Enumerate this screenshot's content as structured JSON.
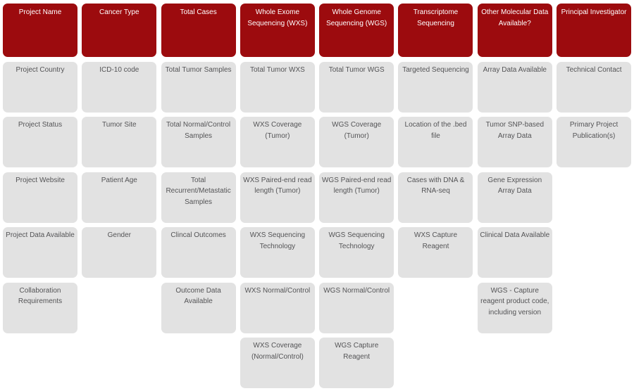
{
  "colors": {
    "header_bg": "#9C0B0E",
    "header_text": "#FFFFFF",
    "cell_bg": "#E2E2E2",
    "cell_text": "#545456",
    "page_bg": "#FFFFFF"
  },
  "columns": [
    {
      "header": "Project Name",
      "cells": [
        "Project Country",
        "Project Status",
        "Project Website",
        "Project Data Available",
        "Collaboration\nRequirements"
      ]
    },
    {
      "header": "Cancer Type",
      "cells": [
        "ICD-10 code",
        "Tumor Site",
        "Patient Age",
        "Gender"
      ]
    },
    {
      "header": "Total Cases",
      "cells": [
        "Total Tumor Samples",
        "Total Normal/Control\nSamples",
        "Total\nRecurrent/Metastatic\nSamples",
        "Clincal Outcomes",
        "Outcome Data\nAvailable"
      ]
    },
    {
      "header": "Whole Exome\nSequencing (WXS)",
      "cells": [
        "Total Tumor WXS",
        "WXS Coverage\n(Tumor)",
        "WXS Paired-end read\nlength (Tumor)",
        "WXS Sequencing\nTechnology",
        "WXS Normal/Control",
        "WXS Coverage\n(Normal/Control)"
      ]
    },
    {
      "header": "Whole Genome\nSequencing (WGS)",
      "cells": [
        "Total Tumor WGS",
        "WGS Coverage\n(Tumor)",
        "WGS Paired-end read\nlength (Tumor)",
        "WGS Sequencing\nTechnology",
        "WGS Normal/Control",
        "WGS Capture\nReagent"
      ]
    },
    {
      "header": "Transcriptome\nSequencing",
      "cells": [
        "Targeted Sequencing",
        "Location of the .bed\nfile",
        "Cases with DNA &\nRNA-seq",
        "WXS Capture\nReagent"
      ]
    },
    {
      "header": "Other Molecular Data\nAvailable?",
      "cells": [
        "Array Data Available",
        "Tumor SNP-based\nArray Data",
        "Gene Expression\nArray Data",
        "Clinical Data Available",
        "WGS - Capture\nreagent product code,\nincluding version"
      ]
    },
    {
      "header": "Principal Investigator",
      "cells": [
        "Technical Contact",
        "Primary Project\nPublication(s)"
      ]
    }
  ]
}
